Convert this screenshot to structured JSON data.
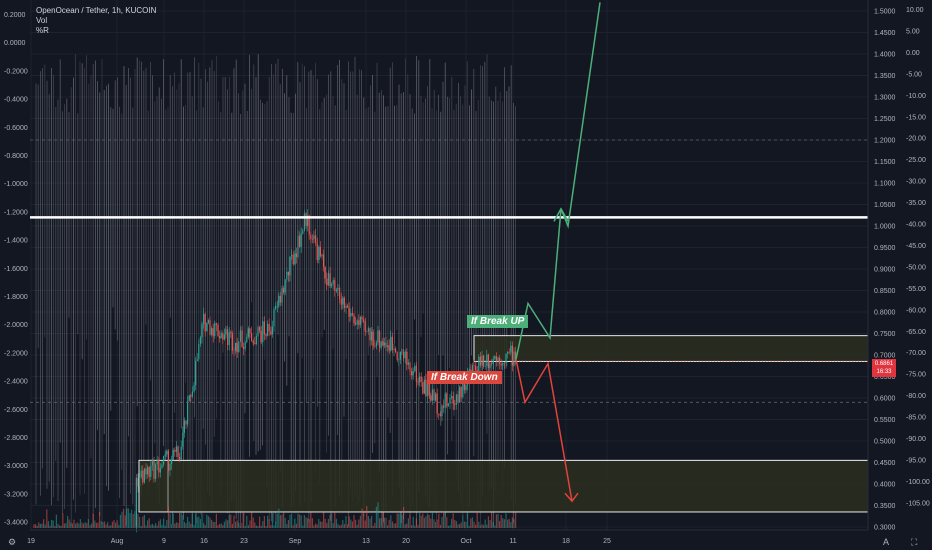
{
  "header": {
    "symbol_line": "OpenOcean / Tether, 1h, KUCOIN",
    "vol_label": "Vol",
    "indicator_label": "%R"
  },
  "colors": {
    "background": "#131722",
    "bull": "#26a69a",
    "bear": "#ef5350",
    "wr_line": "#9a9ca3",
    "resistance_line": "#ffffff",
    "up_arrow": "#4caf7a",
    "down_arrow": "#e0443a"
  },
  "annotations": {
    "break_up": "If Break UP",
    "break_down": "If Break Down"
  },
  "price_tag": {
    "price": "0.6861",
    "time": "16:33"
  },
  "icons": {
    "left_corner": "settings-icon",
    "right_corner": "auto-scale-icon",
    "mid_corner": "log-scale-icon"
  },
  "corner_glyphs": {
    "left": "⚙",
    "mid": "A",
    "right": "⛶"
  },
  "chart_data": {
    "type": "candlestick",
    "instrument": "OpenOcean / Tether",
    "timeframe": "1h",
    "exchange": "KUCOIN",
    "x_axis_ticks": [
      "19",
      "Aug",
      "9",
      "16",
      "23",
      "Sep",
      "13",
      "20",
      "Oct",
      "11",
      "18",
      "25"
    ],
    "price_axis": {
      "ticks": [
        "1.5000",
        "1.4500",
        "1.4000",
        "1.3500",
        "1.3000",
        "1.2500",
        "1.2000",
        "1.1500",
        "1.1000",
        "1.0500",
        "1.0000",
        "0.9500",
        "0.9000",
        "0.8500",
        "0.8000",
        "0.7500",
        "0.7000",
        "0.6500",
        "0.6000",
        "0.5500",
        "0.5000",
        "0.4500",
        "0.4000",
        "0.3500",
        "0.3000"
      ],
      "range": [
        0.295,
        1.52
      ]
    },
    "wr_axis": {
      "ticks": [
        "0.2000",
        "0.0000",
        "-0.2000",
        "-0.4000",
        "-0.6000",
        "-0.8000",
        "-1.0000",
        "-1.2000",
        "-1.4000",
        "-1.6000",
        "-1.8000",
        "-2.0000",
        "-2.2000",
        "-2.4000",
        "-2.6000",
        "-2.8000",
        "-3.0000",
        "-3.2000",
        "-3.4000"
      ]
    },
    "percent_axis": {
      "ticks": [
        "10.00",
        "5.00",
        "0.00",
        "-5.00",
        "-10.00",
        "-15.00",
        "-20.00",
        "-25.00",
        "-30.00",
        "-35.00",
        "-40.00",
        "-45.00",
        "-50.00",
        "-55.00",
        "-60.00",
        "-65.00",
        "-70.00",
        "-75.00",
        "-80.00",
        "-85.00",
        "-90.00",
        "-95.00",
        "-100.00",
        "-105.00"
      ]
    },
    "approx_price_path": {
      "dates": [
        "Aug 5",
        "Aug 9",
        "Aug 14",
        "Aug 16",
        "Aug 23",
        "Aug 28",
        "Sep 1",
        "Sep 5",
        "Sep 10",
        "Sep 16",
        "Sep 20",
        "Sep 24",
        "Sep 28",
        "Oct 1",
        "Oct 5"
      ],
      "close": [
        0.41,
        0.43,
        0.47,
        0.78,
        0.73,
        0.76,
        1.02,
        0.86,
        0.75,
        0.72,
        0.64,
        0.58,
        0.6,
        0.69,
        0.7
      ]
    },
    "levels": {
      "resistance": 1.02,
      "current_price": 0.6861,
      "dashed_levels": [
        1.2,
        0.59
      ]
    },
    "zones": [
      {
        "label": "upper-box",
        "low": 0.685,
        "high": 0.745
      },
      {
        "label": "lower-box",
        "low": 0.335,
        "high": 0.455
      }
    ],
    "projections": {
      "up_path_prices": [
        0.69,
        0.82,
        0.74,
        1.04,
        1.0,
        1.52
      ],
      "down_path_prices": [
        0.69,
        0.59,
        0.68,
        0.36
      ]
    }
  }
}
